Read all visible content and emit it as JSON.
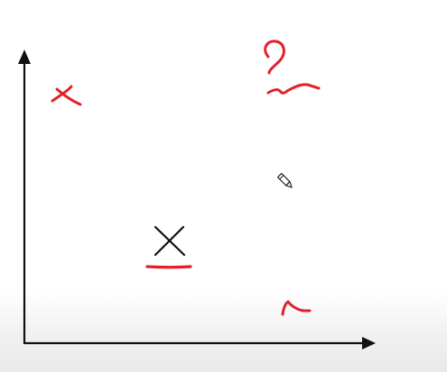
{
  "whiteboard": {
    "ink_colors": {
      "black": "#111111",
      "red": "#e3202a"
    },
    "cursor_icon": "pencil-icon",
    "marks": [
      "axes",
      "red-x-mark",
      "red-question-squiggle",
      "black-x-mark",
      "red-underline",
      "red-check-squiggle"
    ]
  }
}
